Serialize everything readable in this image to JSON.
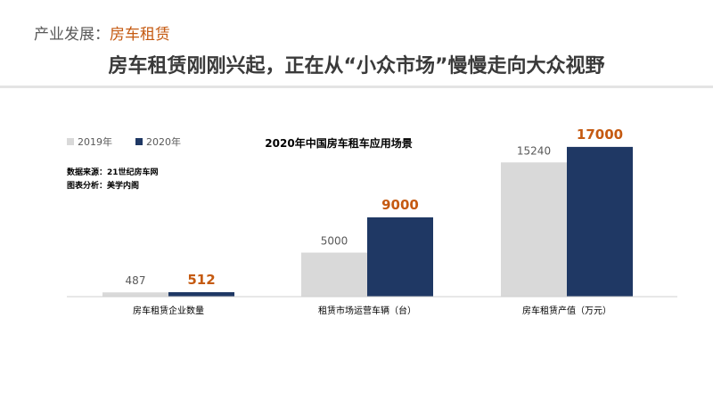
{
  "slide": {
    "section_label": "产业发展：",
    "section_topic": "房车租赁",
    "headline": "房车租赁刚刚兴起，正在从“小众市场”慢慢走向大众视野"
  },
  "chart_data": {
    "type": "bar",
    "title": "2020年中国房车租车应用场景",
    "source_lines": [
      "数据来源：21世纪房车网",
      "图表分析：美学内阁"
    ],
    "categories": [
      "房车租赁企业数量",
      "租赁市场运营车辆（台）",
      "房车租赁产值（万元）"
    ],
    "series": [
      {
        "name": "2019年",
        "values": [
          487,
          5000,
          15240
        ],
        "color": "#d9d9d9",
        "label_color": "#595959",
        "label_bold": false
      },
      {
        "name": "2020年",
        "values": [
          512,
          9000,
          17000
        ],
        "color": "#1f3864",
        "label_color": "#c55a11",
        "label_bold": true
      }
    ],
    "ylim": [
      0,
      18000
    ],
    "legend_position": "top-left",
    "grid": false
  }
}
